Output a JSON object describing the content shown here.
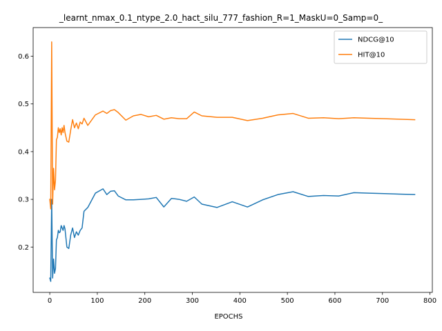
{
  "chart_data": {
    "type": "line",
    "title": "_learnt_nmax_0.1_ntype_2.0_hact_silu_777_fashion_R=1_MaskU=0_Samp=0_",
    "xlabel": "EPOCHS",
    "ylabel": "",
    "xlim": [
      -35,
      805
    ],
    "ylim": [
      0.105,
      0.66
    ],
    "xticks": [
      0,
      100,
      200,
      300,
      400,
      500,
      600,
      700,
      800
    ],
    "yticks": [
      0.2,
      0.3,
      0.4,
      0.5,
      0.6
    ],
    "grid": false,
    "legend_position": "top-right",
    "series": [
      {
        "name": "NDCG@10",
        "color": "#1f77b4",
        "points": [
          [
            0,
            0.135
          ],
          [
            2,
            0.128
          ],
          [
            4,
            0.3
          ],
          [
            6,
            0.135
          ],
          [
            8,
            0.175
          ],
          [
            10,
            0.145
          ],
          [
            12,
            0.155
          ],
          [
            14,
            0.215
          ],
          [
            16,
            0.22
          ],
          [
            18,
            0.235
          ],
          [
            20,
            0.23
          ],
          [
            22,
            0.232
          ],
          [
            24,
            0.245
          ],
          [
            26,
            0.24
          ],
          [
            28,
            0.235
          ],
          [
            30,
            0.245
          ],
          [
            32,
            0.238
          ],
          [
            36,
            0.2
          ],
          [
            40,
            0.197
          ],
          [
            44,
            0.225
          ],
          [
            48,
            0.24
          ],
          [
            52,
            0.22
          ],
          [
            56,
            0.232
          ],
          [
            60,
            0.225
          ],
          [
            64,
            0.235
          ],
          [
            68,
            0.24
          ],
          [
            72,
            0.275
          ],
          [
            80,
            0.283
          ],
          [
            96,
            0.313
          ],
          [
            112,
            0.322
          ],
          [
            120,
            0.31
          ],
          [
            128,
            0.317
          ],
          [
            136,
            0.318
          ],
          [
            144,
            0.307
          ],
          [
            160,
            0.299
          ],
          [
            176,
            0.299
          ],
          [
            192,
            0.3
          ],
          [
            208,
            0.301
          ],
          [
            224,
            0.304
          ],
          [
            240,
            0.284
          ],
          [
            256,
            0.302
          ],
          [
            272,
            0.3
          ],
          [
            288,
            0.296
          ],
          [
            304,
            0.305
          ],
          [
            320,
            0.29
          ],
          [
            352,
            0.283
          ],
          [
            384,
            0.295
          ],
          [
            416,
            0.284
          ],
          [
            448,
            0.299
          ],
          [
            480,
            0.31
          ],
          [
            512,
            0.316
          ],
          [
            544,
            0.306
          ],
          [
            576,
            0.308
          ],
          [
            608,
            0.307
          ],
          [
            640,
            0.314
          ],
          [
            672,
            0.313
          ],
          [
            704,
            0.312
          ],
          [
            736,
            0.311
          ],
          [
            768,
            0.31
          ]
        ]
      },
      {
        "name": "HIT@10",
        "color": "#ff7f0e",
        "points": [
          [
            0,
            0.3
          ],
          [
            2,
            0.28
          ],
          [
            4,
            0.63
          ],
          [
            6,
            0.29
          ],
          [
            8,
            0.365
          ],
          [
            10,
            0.32
          ],
          [
            12,
            0.34
          ],
          [
            14,
            0.425
          ],
          [
            16,
            0.43
          ],
          [
            18,
            0.45
          ],
          [
            20,
            0.44
          ],
          [
            22,
            0.448
          ],
          [
            24,
            0.435
          ],
          [
            26,
            0.45
          ],
          [
            28,
            0.44
          ],
          [
            30,
            0.455
          ],
          [
            32,
            0.44
          ],
          [
            36,
            0.422
          ],
          [
            40,
            0.42
          ],
          [
            44,
            0.445
          ],
          [
            48,
            0.467
          ],
          [
            52,
            0.45
          ],
          [
            56,
            0.46
          ],
          [
            60,
            0.448
          ],
          [
            64,
            0.462
          ],
          [
            68,
            0.458
          ],
          [
            72,
            0.47
          ],
          [
            80,
            0.455
          ],
          [
            96,
            0.477
          ],
          [
            112,
            0.485
          ],
          [
            120,
            0.48
          ],
          [
            128,
            0.486
          ],
          [
            136,
            0.488
          ],
          [
            144,
            0.482
          ],
          [
            160,
            0.466
          ],
          [
            176,
            0.475
          ],
          [
            192,
            0.478
          ],
          [
            208,
            0.473
          ],
          [
            224,
            0.476
          ],
          [
            240,
            0.468
          ],
          [
            256,
            0.471
          ],
          [
            272,
            0.469
          ],
          [
            288,
            0.469
          ],
          [
            304,
            0.483
          ],
          [
            320,
            0.475
          ],
          [
            352,
            0.472
          ],
          [
            384,
            0.472
          ],
          [
            416,
            0.465
          ],
          [
            448,
            0.47
          ],
          [
            480,
            0.477
          ],
          [
            512,
            0.48
          ],
          [
            544,
            0.47
          ],
          [
            576,
            0.471
          ],
          [
            608,
            0.469
          ],
          [
            640,
            0.471
          ],
          [
            672,
            0.47
          ],
          [
            704,
            0.469
          ],
          [
            736,
            0.468
          ],
          [
            768,
            0.467
          ]
        ]
      }
    ]
  }
}
